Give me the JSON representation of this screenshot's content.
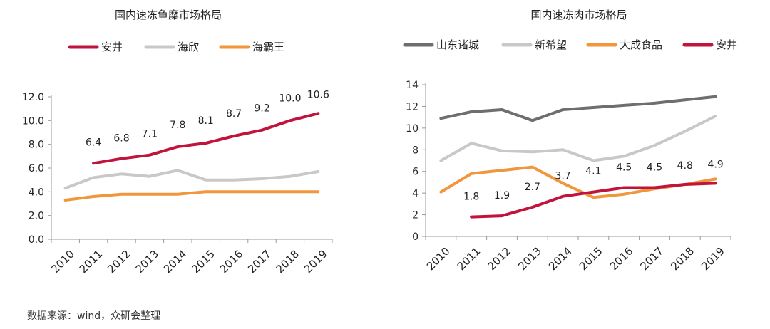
{
  "source": "数据来源：wind，众研会整理",
  "chart_data": [
    {
      "type": "line",
      "title": "国内速冻鱼糜市场格局",
      "categories": [
        "2010",
        "2011",
        "2012",
        "2013",
        "2014",
        "2015",
        "2016",
        "2017",
        "2018",
        "2019"
      ],
      "ylim": [
        0,
        12
      ],
      "yticks": [
        "0.0",
        "2.0",
        "4.0",
        "6.0",
        "8.0",
        "10.0",
        "12.0"
      ],
      "series": [
        {
          "name": "安井",
          "color": "#c0143c",
          "values": [
            null,
            6.4,
            6.8,
            7.1,
            7.8,
            8.1,
            8.7,
            9.2,
            10.0,
            10.6
          ],
          "labels": [
            null,
            "6.4",
            "6.8",
            "7.1",
            "7.8",
            "8.1",
            "8.7",
            "9.2",
            "10.0",
            "10.6"
          ]
        },
        {
          "name": "海欣",
          "color": "#c8c8c8",
          "values": [
            4.3,
            5.2,
            5.5,
            5.3,
            5.8,
            5.0,
            5.0,
            5.1,
            5.3,
            5.7
          ]
        },
        {
          "name": "海霸王",
          "color": "#f0963c",
          "values": [
            3.3,
            3.6,
            3.8,
            3.8,
            3.8,
            4.0,
            4.0,
            4.0,
            4.0,
            4.0
          ]
        }
      ]
    },
    {
      "type": "line",
      "title": "国内速冻肉市场格局",
      "categories": [
        "2010",
        "2011",
        "2012",
        "2013",
        "2014",
        "2015",
        "2016",
        "2017",
        "2018",
        "2019"
      ],
      "ylim": [
        0,
        14
      ],
      "yticks": [
        "0",
        "2",
        "4",
        "6",
        "8",
        "10",
        "12",
        "14"
      ],
      "series": [
        {
          "name": "山东诸城",
          "color": "#6e6e6e",
          "values": [
            10.9,
            11.5,
            11.7,
            10.7,
            11.7,
            11.9,
            12.1,
            12.3,
            12.6,
            12.9
          ]
        },
        {
          "name": "新希望",
          "color": "#c8c8c8",
          "values": [
            7.0,
            8.6,
            7.9,
            7.8,
            8.0,
            7.0,
            7.4,
            8.4,
            9.7,
            11.1
          ]
        },
        {
          "name": "大成食品",
          "color": "#f0963c",
          "values": [
            4.1,
            5.8,
            6.1,
            6.4,
            4.9,
            3.6,
            3.9,
            4.4,
            4.8,
            5.3
          ]
        },
        {
          "name": "安井",
          "color": "#c0143c",
          "values": [
            null,
            1.8,
            1.9,
            2.7,
            3.7,
            4.1,
            4.5,
            4.5,
            4.8,
            4.9
          ],
          "labels": [
            null,
            "1.8",
            "1.9",
            "2.7",
            "3.7",
            "4.1",
            "4.5",
            "4.5",
            "4.8",
            "4.9"
          ]
        }
      ]
    }
  ]
}
